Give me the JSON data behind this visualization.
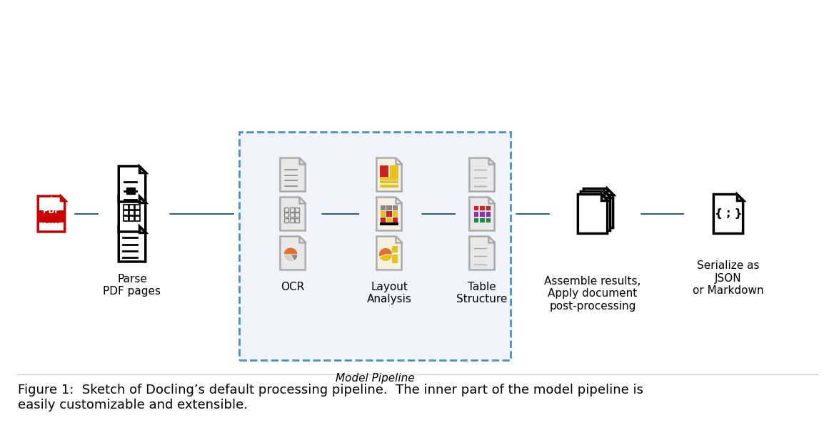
{
  "bg_color": "#ffffff",
  "arrow_color": "#2e5f8a",
  "dashed_box_color": "#4a90c4",
  "figure_caption": "Figure 1:  Sketch of Docling’s default processing pipeline.  The inner part of the model pipeline is\neasily customizable and extensible.",
  "label_parse": "Parse\nPDF pages",
  "label_ocr": "OCR",
  "label_layout": "Layout\nAnalysis",
  "label_table": "Table\nStructure",
  "label_assemble": "Assemble results,\nApply document\npost-processing",
  "label_serialize": "Serialize as\nJSON\nor Markdown",
  "label_model_pipeline": "Model Pipeline",
  "caption_fontsize": 13,
  "label_fontsize": 11
}
